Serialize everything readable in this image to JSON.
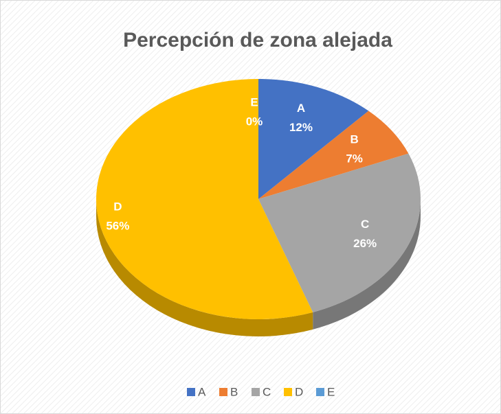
{
  "chart_data": {
    "type": "pie",
    "title": "Percepción de zona alejada",
    "categories": [
      "A",
      "B",
      "C",
      "D",
      "E"
    ],
    "values": [
      12,
      7,
      26,
      56,
      0
    ],
    "value_labels": [
      "12%",
      "7%",
      "26%",
      "56%",
      "0%"
    ],
    "colors": [
      "#4472c4",
      "#ed7d31",
      "#a5a5a5",
      "#ffc000",
      "#5b9bd5"
    ],
    "legend": "bottom"
  }
}
